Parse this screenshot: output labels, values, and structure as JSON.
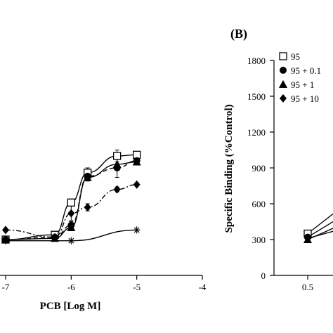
{
  "chart_data": [
    {
      "type": "line",
      "panel": "A (cropped)",
      "title": "",
      "xlabel": "PCB [Log M]",
      "ylabel": "",
      "xlim": [
        -7,
        -4
      ],
      "xticks": [
        "-7",
        "-6",
        "-5",
        "-4"
      ],
      "series": [
        {
          "marker": "open-square",
          "line_style": "solid",
          "color": "#000000",
          "x": [
            -7,
            -6.25,
            -6,
            -5.75,
            -5.3,
            -5
          ],
          "y": [
            300,
            340,
            610,
            860,
            1000,
            1010
          ],
          "err": [
            0,
            20,
            30,
            40,
            50,
            20
          ]
        },
        {
          "marker": "filled-circle",
          "line_style": "dashed",
          "color": "#000000",
          "x": [
            -7,
            -6.25,
            -6,
            -5.75,
            -5.3,
            -5
          ],
          "y": [
            300,
            320,
            420,
            830,
            900,
            960
          ],
          "err": [
            0,
            10,
            30,
            30,
            80,
            20
          ]
        },
        {
          "marker": "filled-triangle",
          "line_style": "solid",
          "color": "#000000",
          "x": [
            -7,
            -6.25,
            -6,
            -5.75,
            -5.3,
            -5
          ],
          "y": [
            300,
            310,
            400,
            820,
            930,
            950
          ],
          "err": [
            0,
            10,
            20,
            30,
            40,
            20
          ]
        },
        {
          "marker": "filled-diamond",
          "line_style": "dash-dot",
          "color": "#000000",
          "x": [
            -7,
            -6.25,
            -6,
            -5.75,
            -5.3,
            -5
          ],
          "y": [
            380,
            320,
            520,
            570,
            720,
            760
          ],
          "err": [
            0,
            10,
            60,
            30,
            20,
            10
          ]
        },
        {
          "marker": "asterisk",
          "line_style": "solid",
          "color": "#000000",
          "x": [
            -7,
            -6,
            -5
          ],
          "y": [
            290,
            290,
            380
          ],
          "err": [
            0,
            0,
            0
          ]
        }
      ]
    },
    {
      "type": "line",
      "panel": "B (cropped)",
      "panel_label": "(B)",
      "title": "",
      "xlabel": "",
      "ylabel": "Specific Binding (%Control)",
      "ylim": [
        0,
        1800
      ],
      "yticks": [
        "0",
        "300",
        "600",
        "900",
        "1200",
        "1500",
        "1800"
      ],
      "xticks": [
        "0.5"
      ],
      "legend": {
        "placement": "top-left",
        "entries": [
          {
            "marker": "open-square",
            "label": "95"
          },
          {
            "marker": "filled-circle",
            "label": "95 + 0.1"
          },
          {
            "marker": "filled-triangle",
            "label": "95 + 1"
          },
          {
            "marker": "filled-diamond",
            "label": "95 + 10"
          }
        ]
      },
      "series": [
        {
          "marker": "open-square",
          "x": [
            0.5
          ],
          "y": [
            350
          ]
        },
        {
          "marker": "filled-circle",
          "x": [
            0.5
          ],
          "y": [
            320
          ]
        },
        {
          "marker": "filled-triangle",
          "x": [
            0.5
          ],
          "y": [
            300
          ]
        },
        {
          "marker": "filled-diamond",
          "x": [
            0.5
          ],
          "y": [
            310
          ]
        }
      ]
    }
  ]
}
